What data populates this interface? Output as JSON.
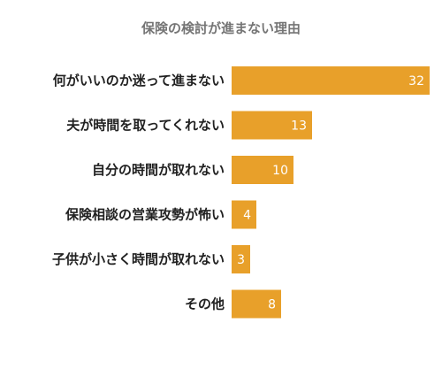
{
  "chart_data": {
    "type": "bar",
    "orientation": "horizontal",
    "title": "保険の検討が進まない理由",
    "categories": [
      "何がいいのか迷って進まない",
      "夫が時間を取ってくれない",
      "自分の時間が取れない",
      "保険相談の営業攻勢が怖い",
      "子供が小さく時間が取れない",
      "その他"
    ],
    "values": [
      32,
      13,
      10,
      4,
      3,
      8
    ],
    "xlim": [
      0,
      32
    ],
    "grid": false,
    "legend": "none",
    "bar_color": "#E8A02A"
  }
}
